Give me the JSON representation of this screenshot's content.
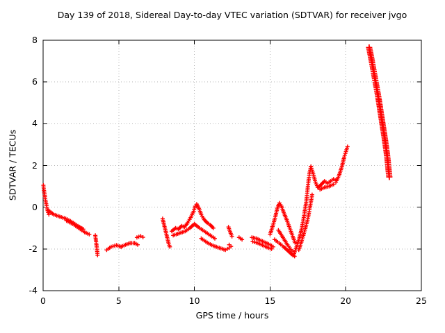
{
  "chart_data": {
    "type": "scatter",
    "title": "Day 139 of 2018, Sidereal Day-to-day VTEC variation (SDTVAR) for receiver jvgo",
    "xlabel": "GPS time / hours",
    "ylabel": "SDTVAR / TECUs",
    "xlim": [
      0,
      25
    ],
    "ylim": [
      -4,
      8
    ],
    "xticks": [
      0,
      5,
      10,
      15,
      20,
      25
    ],
    "yticks": [
      -4,
      -2,
      0,
      2,
      4,
      6,
      8
    ],
    "grid": true,
    "legend": "none",
    "marker": "plus",
    "marker_size": 3,
    "color": "#ff0000",
    "series": [
      {
        "name": "SDTVAR",
        "segments": [
          {
            "points": [
              [
                0.02,
                1.05
              ],
              [
                0.06,
                0.8
              ],
              [
                0.12,
                0.5
              ],
              [
                0.18,
                0.25
              ],
              [
                0.25,
                0.0
              ],
              [
                0.32,
                -0.25
              ],
              [
                0.38,
                -0.35
              ]
            ]
          },
          {
            "points": [
              [
                0.35,
                -0.15
              ],
              [
                0.7,
                -0.35
              ],
              [
                1.1,
                -0.45
              ],
              [
                1.5,
                -0.55
              ],
              [
                1.9,
                -0.7
              ],
              [
                2.3,
                -0.9
              ],
              [
                2.65,
                -1.05
              ]
            ]
          },
          {
            "points": [
              [
                1.55,
                -0.65
              ],
              [
                1.95,
                -0.8
              ],
              [
                2.35,
                -1.0
              ],
              [
                2.75,
                -1.2
              ],
              [
                3.05,
                -1.3
              ]
            ]
          },
          {
            "points": [
              [
                3.45,
                -1.35
              ],
              [
                3.5,
                -1.65
              ],
              [
                3.55,
                -1.95
              ],
              [
                3.6,
                -2.3
              ]
            ]
          },
          {
            "points": [
              [
                4.2,
                -2.05
              ],
              [
                4.5,
                -1.9
              ],
              [
                4.85,
                -1.82
              ],
              [
                5.15,
                -1.9
              ]
            ]
          },
          {
            "points": [
              [
                5.15,
                -1.9
              ],
              [
                5.45,
                -1.8
              ],
              [
                5.75,
                -1.72
              ],
              [
                6.05,
                -1.72
              ],
              [
                6.25,
                -1.8
              ]
            ]
          },
          {
            "points": [
              [
                6.2,
                -1.45
              ],
              [
                6.45,
                -1.38
              ],
              [
                6.6,
                -1.44
              ]
            ]
          },
          {
            "points": [
              [
                7.9,
                -0.55
              ],
              [
                8.0,
                -0.85
              ],
              [
                8.1,
                -1.15
              ],
              [
                8.2,
                -1.45
              ],
              [
                8.3,
                -1.75
              ],
              [
                8.38,
                -1.9
              ]
            ]
          },
          {
            "points": [
              [
                8.5,
                -1.15
              ],
              [
                8.75,
                -1.0
              ],
              [
                8.95,
                -1.05
              ],
              [
                9.15,
                -0.9
              ],
              [
                9.35,
                -0.95
              ],
              [
                9.55,
                -0.75
              ],
              [
                9.75,
                -0.5
              ],
              [
                9.95,
                -0.2
              ],
              [
                10.05,
                0.05
              ],
              [
                10.15,
                0.15
              ],
              [
                10.3,
                -0.05
              ],
              [
                10.45,
                -0.35
              ],
              [
                10.65,
                -0.6
              ],
              [
                10.85,
                -0.75
              ],
              [
                11.05,
                -0.85
              ],
              [
                11.25,
                -1.0
              ]
            ]
          },
          {
            "points": [
              [
                8.6,
                -1.35
              ],
              [
                9.0,
                -1.25
              ],
              [
                9.4,
                -1.15
              ],
              [
                9.7,
                -1.0
              ],
              [
                10.0,
                -0.8
              ],
              [
                10.25,
                -0.95
              ],
              [
                10.55,
                -1.1
              ],
              [
                10.85,
                -1.25
              ],
              [
                11.15,
                -1.4
              ],
              [
                11.35,
                -1.5
              ]
            ]
          },
          {
            "points": [
              [
                10.45,
                -1.5
              ],
              [
                10.85,
                -1.7
              ],
              [
                11.25,
                -1.85
              ],
              [
                11.65,
                -1.95
              ],
              [
                12.05,
                -2.05
              ],
              [
                12.3,
                -1.95
              ]
            ]
          },
          {
            "points": [
              [
                12.25,
                -0.95
              ],
              [
                12.32,
                -1.1
              ],
              [
                12.4,
                -1.25
              ],
              [
                12.48,
                -1.4
              ]
            ]
          },
          {
            "points": [
              [
                12.3,
                -1.8
              ],
              [
                12.42,
                -1.88
              ]
            ]
          },
          {
            "points": [
              [
                12.95,
                -1.45
              ],
              [
                13.15,
                -1.55
              ]
            ]
          },
          {
            "points": [
              [
                13.8,
                -1.45
              ],
              [
                14.1,
                -1.5
              ],
              [
                14.4,
                -1.6
              ],
              [
                14.7,
                -1.7
              ],
              [
                15.0,
                -1.8
              ],
              [
                15.2,
                -1.9
              ]
            ]
          },
          {
            "points": [
              [
                13.85,
                -1.65
              ],
              [
                14.2,
                -1.72
              ],
              [
                14.5,
                -1.82
              ],
              [
                14.8,
                -1.92
              ],
              [
                15.1,
                -2.0
              ]
            ]
          },
          {
            "points": [
              [
                15.0,
                -1.3
              ],
              [
                15.2,
                -0.85
              ],
              [
                15.35,
                -0.45
              ],
              [
                15.5,
                0.0
              ],
              [
                15.62,
                0.2
              ],
              [
                15.75,
                0.05
              ],
              [
                15.9,
                -0.25
              ],
              [
                16.1,
                -0.6
              ],
              [
                16.3,
                -1.0
              ],
              [
                16.5,
                -1.4
              ],
              [
                16.65,
                -1.7
              ]
            ]
          },
          {
            "points": [
              [
                15.3,
                -1.55
              ],
              [
                15.6,
                -1.72
              ],
              [
                15.9,
                -1.9
              ],
              [
                16.2,
                -2.1
              ],
              [
                16.5,
                -2.3
              ],
              [
                16.62,
                -2.35
              ]
            ]
          },
          {
            "points": [
              [
                15.55,
                -1.1
              ],
              [
                15.85,
                -1.45
              ],
              [
                16.15,
                -1.8
              ],
              [
                16.45,
                -2.1
              ]
            ]
          },
          {
            "points": [
              [
                16.55,
                -2.3
              ],
              [
                16.75,
                -1.9
              ],
              [
                16.95,
                -1.45
              ],
              [
                17.1,
                -1.0
              ],
              [
                17.25,
                -0.4
              ],
              [
                17.4,
                0.3
              ],
              [
                17.5,
                1.0
              ],
              [
                17.6,
                1.6
              ],
              [
                17.7,
                1.95
              ]
            ]
          },
          {
            "points": [
              [
                16.9,
                -2.05
              ],
              [
                17.1,
                -1.6
              ],
              [
                17.3,
                -1.1
              ],
              [
                17.5,
                -0.55
              ],
              [
                17.65,
                0.05
              ],
              [
                17.78,
                0.6
              ]
            ]
          },
          {
            "points": [
              [
                17.7,
                1.95
              ],
              [
                17.85,
                1.6
              ],
              [
                18.0,
                1.2
              ],
              [
                18.15,
                0.95
              ]
            ]
          },
          {
            "points": [
              [
                18.2,
                0.95
              ],
              [
                18.4,
                1.1
              ],
              [
                18.6,
                1.25
              ],
              [
                18.8,
                1.15
              ],
              [
                19.0,
                1.25
              ],
              [
                19.2,
                1.35
              ],
              [
                19.35,
                1.3
              ]
            ]
          },
          {
            "points": [
              [
                18.3,
                0.85
              ],
              [
                18.6,
                0.95
              ],
              [
                18.9,
                1.0
              ],
              [
                19.2,
                1.1
              ]
            ]
          },
          {
            "points": [
              [
                19.35,
                1.2
              ],
              [
                19.55,
                1.5
              ],
              [
                19.75,
                1.95
              ],
              [
                19.9,
                2.4
              ],
              [
                20.05,
                2.75
              ],
              [
                20.12,
                2.9
              ]
            ]
          },
          {
            "points": [
              [
                21.55,
                7.65
              ],
              [
                21.7,
                7.1
              ],
              [
                21.85,
                6.5
              ],
              [
                22.0,
                5.9
              ],
              [
                22.15,
                5.3
              ],
              [
                22.3,
                4.6
              ],
              [
                22.45,
                3.9
              ],
              [
                22.6,
                3.2
              ],
              [
                22.75,
                2.4
              ],
              [
                22.88,
                1.45
              ]
            ],
            "size": 4.5
          }
        ]
      }
    ]
  }
}
